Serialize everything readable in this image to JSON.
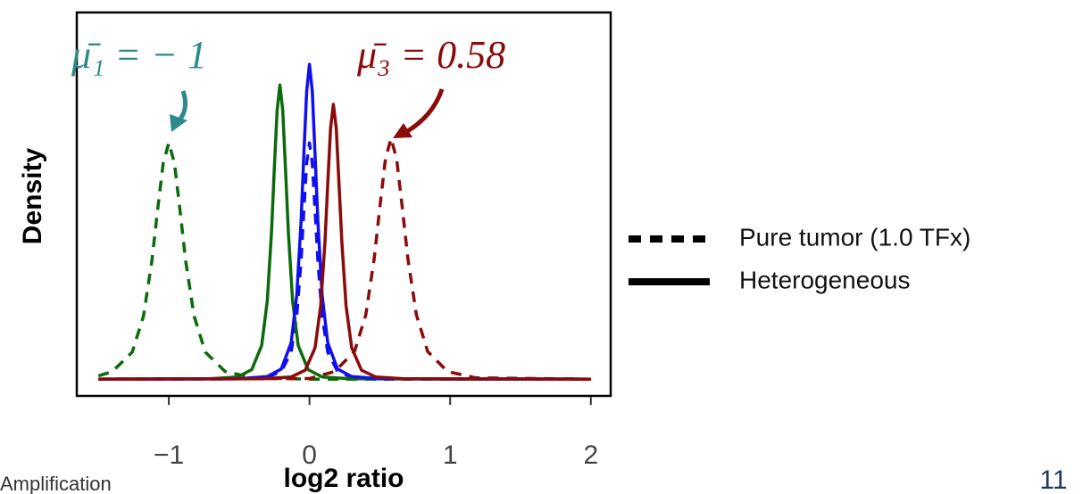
{
  "chart_data": {
    "type": "line",
    "xlabel": "log2 ratio",
    "ylabel": "Density",
    "xlim": [
      -1.654,
      2.141
    ],
    "ylim": [
      -0.05,
      1.15
    ],
    "xticks": [
      {
        "value": -1,
        "label": "−1"
      },
      0,
      1,
      2
    ],
    "series": [
      {
        "color": "#0b6b0b",
        "dash": true,
        "x": [
          -1.5,
          -1.4,
          -1.26,
          -1.18,
          -1.12,
          -1.08,
          -1.04,
          -1,
          -0.96,
          -0.92,
          -0.88,
          -0.82,
          -0.74,
          -0.6,
          -0.4,
          0,
          2
        ],
        "values": [
          0.01,
          0.024,
          0.085,
          0.198,
          0.371,
          0.529,
          0.679,
          0.743,
          0.679,
          0.529,
          0.371,
          0.198,
          0.085,
          0.024,
          0.004,
          0,
          0
        ]
      },
      {
        "color": "#8b0a0a",
        "dash": true,
        "x": [
          -1.5,
          0,
          0.18,
          0.32,
          0.4,
          0.46,
          0.5,
          0.54,
          0.58,
          0.62,
          0.66,
          0.7,
          0.76,
          0.84,
          0.98,
          1.18,
          2
        ],
        "values": [
          0,
          0.002,
          0.024,
          0.087,
          0.202,
          0.378,
          0.539,
          0.692,
          0.757,
          0.692,
          0.539,
          0.378,
          0.202,
          0.087,
          0.024,
          0.004,
          0
        ]
      },
      {
        "color": "#1010ee",
        "dash": true,
        "x": [
          -1.5,
          -0.5,
          -0.3,
          -0.2,
          -0.13,
          -0.09,
          -0.06,
          -0.04,
          -0.02,
          0,
          0.02,
          0.04,
          0.06,
          0.09,
          0.13,
          0.2,
          0.3,
          0.5,
          2
        ],
        "values": [
          0,
          0.001,
          0.006,
          0.024,
          0.085,
          0.198,
          0.371,
          0.529,
          0.679,
          0.743,
          0.679,
          0.529,
          0.371,
          0.198,
          0.085,
          0.024,
          0.006,
          0.001,
          0
        ]
      },
      {
        "color": "#0b6b0b",
        "dash": false,
        "x": [
          -1.5,
          -0.71,
          -0.51,
          -0.41,
          -0.34,
          -0.3,
          -0.27,
          -0.25,
          -0.23,
          -0.21,
          -0.19,
          -0.17,
          -0.15,
          -0.12,
          -0.08,
          -0.01,
          0.09,
          0.29,
          2
        ],
        "values": [
          0,
          0.001,
          0.007,
          0.03,
          0.106,
          0.247,
          0.462,
          0.659,
          0.845,
          0.925,
          0.845,
          0.659,
          0.462,
          0.247,
          0.106,
          0.03,
          0.007,
          0.001,
          0
        ]
      },
      {
        "color": "#1010ee",
        "dash": false,
        "x": [
          -1.5,
          -0.5,
          -0.3,
          -0.2,
          -0.13,
          -0.09,
          -0.06,
          -0.04,
          -0.02,
          0,
          0.02,
          0.04,
          0.06,
          0.09,
          0.13,
          0.2,
          0.3,
          0.5,
          2
        ],
        "values": [
          0,
          0.001,
          0.008,
          0.032,
          0.114,
          0.264,
          0.494,
          0.705,
          0.905,
          0.99,
          0.905,
          0.705,
          0.494,
          0.264,
          0.114,
          0.032,
          0.008,
          0.001,
          0
        ]
      },
      {
        "color": "#8b0a0a",
        "dash": false,
        "x": [
          -1.5,
          -0.33,
          -0.13,
          -0.03,
          0.04,
          0.08,
          0.11,
          0.13,
          0.15,
          0.17,
          0.19,
          0.21,
          0.23,
          0.26,
          0.3,
          0.37,
          0.47,
          0.67,
          2
        ],
        "values": [
          0,
          0.001,
          0.007,
          0.028,
          0.099,
          0.231,
          0.431,
          0.615,
          0.79,
          0.864,
          0.79,
          0.615,
          0.431,
          0.231,
          0.099,
          0.028,
          0.007,
          0.001,
          0
        ]
      }
    ],
    "legend": [
      {
        "label": "Pure tumor (1.0 TFx)",
        "dash": true
      },
      {
        "label": "Heterogeneous",
        "dash": false
      }
    ],
    "annotations": [
      "μ̄₁ = − 1",
      "μ̄₃ = 0.58"
    ]
  },
  "footer": {
    "section": "Amplification",
    "page": "11"
  }
}
